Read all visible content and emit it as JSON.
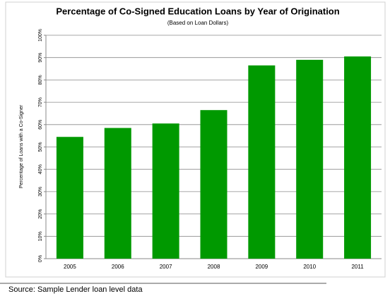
{
  "chart_data": {
    "type": "bar",
    "title": "Percentage of Co-Signed Education Loans by Year of Origination",
    "subtitle": "(Based on Loan Dollars)",
    "y_label": "Percentage of Loans with a Co-Signer",
    "categories": [
      "2005",
      "2006",
      "2007",
      "2008",
      "2009",
      "2010",
      "2011"
    ],
    "values": [
      54.5,
      58.5,
      60.5,
      66.5,
      86.5,
      89,
      90.5
    ],
    "color": "#009900",
    "ylim": [
      0,
      100
    ],
    "yticks": [
      {
        "value": 0,
        "label": "0%"
      },
      {
        "value": 10,
        "label": "10%"
      },
      {
        "value": 20,
        "label": "20%"
      },
      {
        "value": 30,
        "label": "30%"
      },
      {
        "value": 40,
        "label": "40%"
      },
      {
        "value": 50,
        "label": "50%"
      },
      {
        "value": 60,
        "label": "60%"
      },
      {
        "value": 70,
        "label": "70%"
      },
      {
        "value": 80,
        "label": "80%"
      },
      {
        "value": 90,
        "label": "90%"
      },
      {
        "value": 100,
        "label": "100%"
      }
    ],
    "grid": true,
    "source": "Source: Sample Lender loan level data"
  }
}
